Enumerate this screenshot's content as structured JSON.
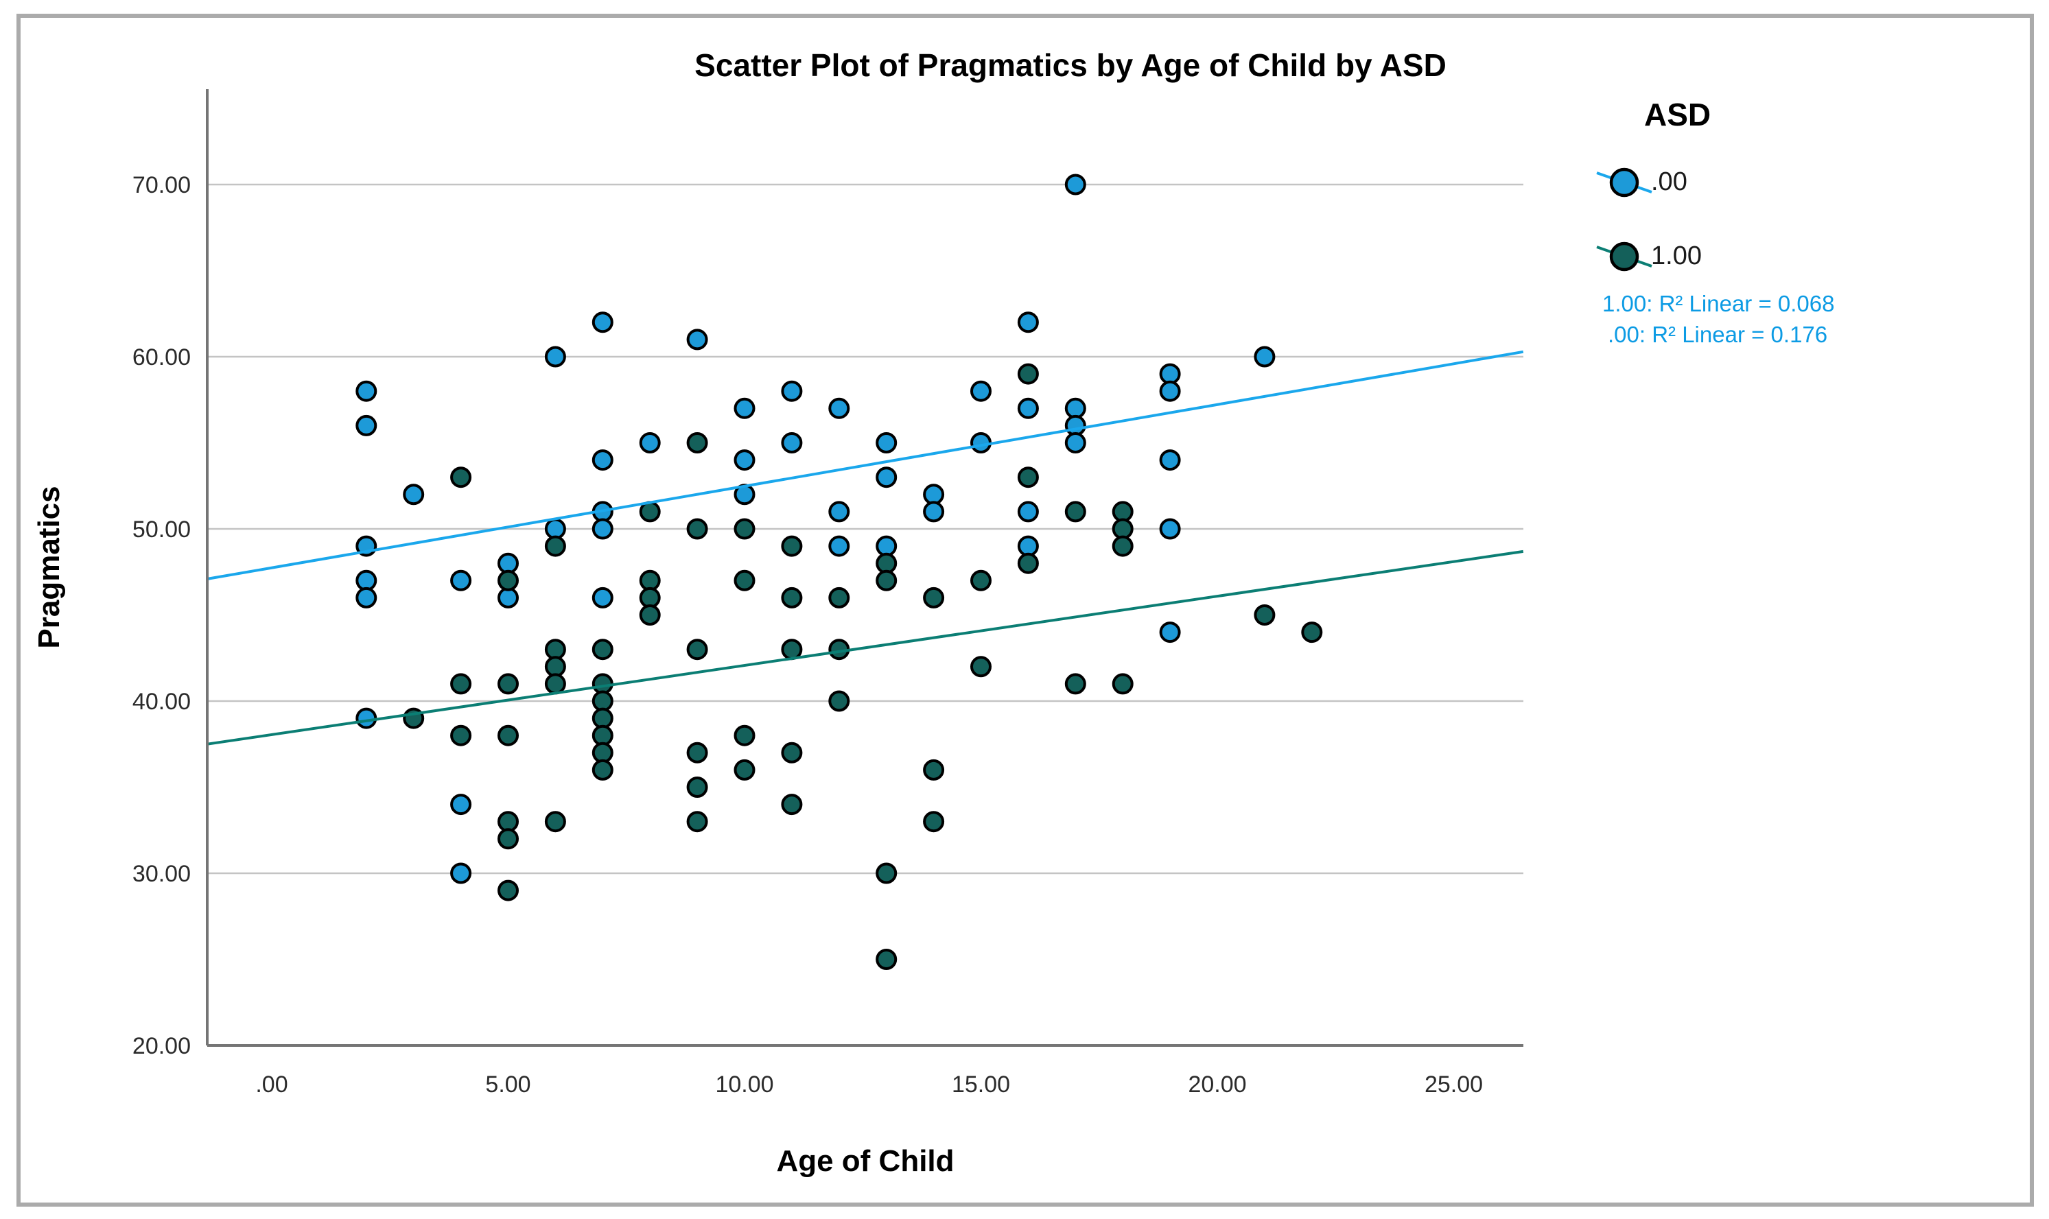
{
  "figure": {
    "background": "#ffffff",
    "border_color": "#ababab"
  },
  "chart_data": {
    "type": "scatter",
    "title": "Scatter Plot of Pragmatics by Age of Child by ASD",
    "xlabel": "Age of Child",
    "ylabel": "Pragmatics",
    "grid": "horizontal-only",
    "xlim": [
      -1.36,
      26.47
    ],
    "ylim": [
      20,
      75.5
    ],
    "x_ticks": {
      "values": [
        0,
        5,
        10,
        15,
        20,
        25
      ],
      "labels": [
        ".00",
        "5.00",
        "10.00",
        "15.00",
        "20.00",
        "25.00"
      ]
    },
    "y_ticks": {
      "values": [
        20,
        30,
        40,
        50,
        60,
        70
      ],
      "labels": [
        "20.00",
        "30.00",
        "40.00",
        "50.00",
        "60.00",
        "70.00"
      ]
    },
    "gridline_color": "#c4c4c4",
    "axis_color": "#757575",
    "tick_label_color": "#2b2b2b",
    "marker_outline_color": "#000000",
    "series": [
      {
        "name": ".00",
        "color": "#1d9ad8",
        "points": [
          [
            2,
            58
          ],
          [
            2,
            56
          ],
          [
            2,
            49
          ],
          [
            2,
            47
          ],
          [
            2,
            46
          ],
          [
            2,
            39
          ],
          [
            3,
            52
          ],
          [
            4,
            47
          ],
          [
            4,
            34
          ],
          [
            4,
            30
          ],
          [
            5,
            48
          ],
          [
            5,
            46
          ],
          [
            6,
            60
          ],
          [
            6,
            50
          ],
          [
            7,
            62
          ],
          [
            7,
            54
          ],
          [
            7,
            51
          ],
          [
            7,
            50
          ],
          [
            7,
            46
          ],
          [
            8,
            55
          ],
          [
            9,
            61
          ],
          [
            10,
            57
          ],
          [
            10,
            54
          ],
          [
            10,
            52
          ],
          [
            11,
            58
          ],
          [
            11,
            55
          ],
          [
            12,
            57
          ],
          [
            12,
            51
          ],
          [
            12,
            49
          ],
          [
            13,
            55
          ],
          [
            13,
            53
          ],
          [
            13,
            49
          ],
          [
            14,
            52
          ],
          [
            14,
            51
          ],
          [
            15,
            58
          ],
          [
            15,
            55
          ],
          [
            16,
            62
          ],
          [
            16,
            57
          ],
          [
            16,
            51
          ],
          [
            16,
            49
          ],
          [
            17,
            70
          ],
          [
            17,
            57
          ],
          [
            17,
            56
          ],
          [
            17,
            55
          ],
          [
            19,
            59
          ],
          [
            19,
            58
          ],
          [
            19,
            54
          ],
          [
            19,
            50
          ],
          [
            19,
            44
          ],
          [
            21,
            60
          ]
        ]
      },
      {
        "name": "1.00",
        "color": "#14605a",
        "points": [
          [
            3,
            39
          ],
          [
            4,
            53
          ],
          [
            4,
            41
          ],
          [
            4,
            38
          ],
          [
            5,
            47
          ],
          [
            5,
            41
          ],
          [
            5,
            38
          ],
          [
            5,
            33
          ],
          [
            5,
            32
          ],
          [
            5,
            29
          ],
          [
            6,
            49
          ],
          [
            6,
            43
          ],
          [
            6,
            42
          ],
          [
            6,
            41
          ],
          [
            6,
            33
          ],
          [
            7,
            43
          ],
          [
            7,
            41
          ],
          [
            7,
            40
          ],
          [
            7,
            39
          ],
          [
            7,
            38
          ],
          [
            7,
            37
          ],
          [
            7,
            36
          ],
          [
            8,
            51
          ],
          [
            8,
            47
          ],
          [
            8,
            46
          ],
          [
            8,
            45
          ],
          [
            9,
            55
          ],
          [
            9,
            50
          ],
          [
            9,
            43
          ],
          [
            9,
            37
          ],
          [
            9,
            35
          ],
          [
            9,
            33
          ],
          [
            10,
            50
          ],
          [
            10,
            47
          ],
          [
            10,
            38
          ],
          [
            10,
            36
          ],
          [
            11,
            49
          ],
          [
            11,
            46
          ],
          [
            11,
            43
          ],
          [
            11,
            37
          ],
          [
            11,
            34
          ],
          [
            12,
            46
          ],
          [
            12,
            43
          ],
          [
            12,
            40
          ],
          [
            13,
            48
          ],
          [
            13,
            47
          ],
          [
            13,
            30
          ],
          [
            13,
            25
          ],
          [
            14,
            46
          ],
          [
            14,
            36
          ],
          [
            14,
            33
          ],
          [
            15,
            47
          ],
          [
            15,
            42
          ],
          [
            16,
            59
          ],
          [
            16,
            53
          ],
          [
            16,
            48
          ],
          [
            17,
            51
          ],
          [
            17,
            41
          ],
          [
            18,
            51
          ],
          [
            18,
            50
          ],
          [
            18,
            49
          ],
          [
            18,
            41
          ],
          [
            21,
            45
          ],
          [
            22,
            44
          ]
        ]
      }
    ],
    "trend_lines": [
      {
        "series": ".00",
        "color": "#1aa7ec",
        "slope": 0.474,
        "intercept": 47.74
      },
      {
        "series": "1.00",
        "color": "#0b7e74",
        "slope": 0.402,
        "intercept": 38.05
      }
    ],
    "legend_position": "top-right-outside"
  },
  "legend": {
    "title": "ASD",
    "entries": [
      {
        "label": ".00",
        "color": "#1d9ad8",
        "line_color": "#1aa7ec"
      },
      {
        "label": "1.00",
        "color": "#14605a",
        "line_color": "#0b7e74"
      }
    ],
    "r2_annotations": {
      "color": "#0c9be4",
      "lines": [
        "1.00: R² Linear = 0.068",
        ".00: R² Linear = 0.176"
      ]
    }
  }
}
